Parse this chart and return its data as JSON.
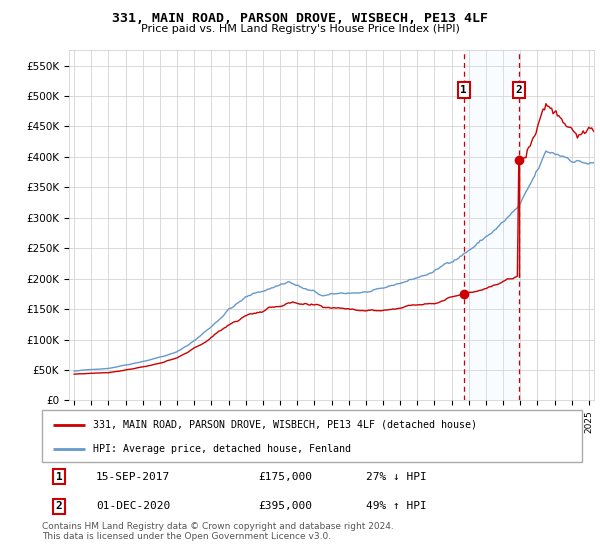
{
  "title": "331, MAIN ROAD, PARSON DROVE, WISBECH, PE13 4LF",
  "subtitle": "Price paid vs. HM Land Registry's House Price Index (HPI)",
  "ylim": [
    0,
    575000
  ],
  "xlim_start": 1994.7,
  "xlim_end": 2025.3,
  "sale1_x": 2017.708,
  "sale1_y": 175000,
  "sale2_x": 2020.917,
  "sale2_y": 395000,
  "legend_property": "331, MAIN ROAD, PARSON DROVE, WISBECH, PE13 4LF (detached house)",
  "legend_hpi": "HPI: Average price, detached house, Fenland",
  "footer": "Contains HM Land Registry data © Crown copyright and database right 2024.\nThis data is licensed under the Open Government Licence v3.0.",
  "red_color": "#cc0000",
  "blue_color": "#6699cc",
  "plot_bg": "#ffffff",
  "shade_color": "#ddeeff",
  "grid_color": "#cccccc"
}
